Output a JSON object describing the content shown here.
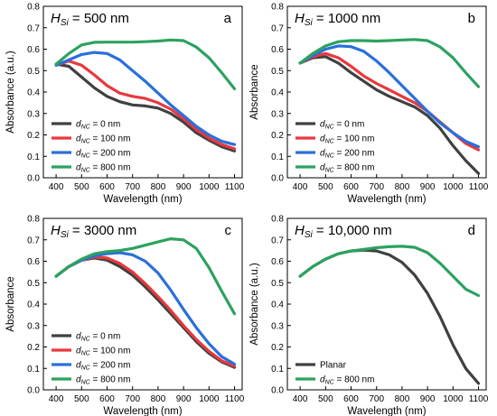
{
  "chart_data": [
    {
      "type": "line",
      "panel_letter": "a",
      "title_var": "H",
      "title_sub": "Si",
      "title_value": " = 500 nm",
      "xlabel": "Wavelength (nm)",
      "ylabel": "Absorbance (a.u.)",
      "xlim": [
        350,
        1130
      ],
      "ylim": [
        0,
        0.8
      ],
      "xticks": [
        400,
        500,
        600,
        700,
        800,
        900,
        1000,
        1100
      ],
      "yticks": [
        0,
        0.1,
        0.2,
        0.3,
        0.4,
        0.5,
        0.6,
        0.7,
        0.8
      ],
      "grid": false,
      "legend_position": "bottom-left",
      "series": [
        {
          "legend_var": "d",
          "legend_sub": "NC",
          "legend_value": " = 0 nm",
          "color": "#404040",
          "x": [
            400,
            450,
            500,
            550,
            600,
            650,
            700,
            750,
            800,
            850,
            900,
            950,
            1000,
            1050,
            1100
          ],
          "y": [
            0.53,
            0.52,
            0.47,
            0.42,
            0.38,
            0.355,
            0.34,
            0.335,
            0.325,
            0.3,
            0.26,
            0.21,
            0.175,
            0.145,
            0.125
          ]
        },
        {
          "legend_var": "d",
          "legend_sub": "NC",
          "legend_value": " = 100 nm",
          "color": "#e8383d",
          "x": [
            400,
            450,
            500,
            550,
            600,
            650,
            700,
            750,
            800,
            850,
            900,
            950,
            1000,
            1050,
            1100
          ],
          "y": [
            0.525,
            0.545,
            0.525,
            0.48,
            0.43,
            0.395,
            0.38,
            0.37,
            0.35,
            0.32,
            0.275,
            0.225,
            0.185,
            0.155,
            0.135
          ]
        },
        {
          "legend_var": "d",
          "legend_sub": "NC",
          "legend_value": " = 200 nm",
          "color": "#2a6fdb",
          "x": [
            400,
            450,
            500,
            550,
            600,
            650,
            700,
            750,
            800,
            850,
            900,
            950,
            1000,
            1050,
            1100
          ],
          "y": [
            0.525,
            0.55,
            0.575,
            0.585,
            0.58,
            0.55,
            0.5,
            0.45,
            0.395,
            0.34,
            0.29,
            0.24,
            0.2,
            0.17,
            0.155
          ]
        },
        {
          "legend_var": "d",
          "legend_sub": "NC",
          "legend_value": " = 800 nm",
          "color": "#2ca25f",
          "x": [
            400,
            450,
            500,
            550,
            600,
            650,
            700,
            750,
            800,
            850,
            900,
            950,
            1000,
            1050,
            1100
          ],
          "y": [
            0.53,
            0.58,
            0.62,
            0.632,
            0.633,
            0.633,
            0.633,
            0.635,
            0.638,
            0.643,
            0.64,
            0.61,
            0.56,
            0.49,
            0.415
          ]
        }
      ]
    },
    {
      "type": "line",
      "panel_letter": "b",
      "title_var": "H",
      "title_sub": "Si",
      "title_value": " = 1000 nm",
      "xlabel": "Wavelength (nm)",
      "ylabel": "Absorbance",
      "xlim": [
        350,
        1130
      ],
      "ylim": [
        0,
        0.8
      ],
      "xticks": [
        400,
        500,
        600,
        700,
        800,
        900,
        1000,
        1100
      ],
      "yticks": [
        0,
        0.1,
        0.2,
        0.3,
        0.4,
        0.5,
        0.6,
        0.7,
        0.8
      ],
      "grid": false,
      "legend_position": "bottom-left",
      "series": [
        {
          "legend_var": "d",
          "legend_sub": "NC",
          "legend_value": " = 0 nm",
          "color": "#404040",
          "x": [
            400,
            450,
            500,
            550,
            600,
            650,
            700,
            750,
            800,
            850,
            900,
            950,
            1000,
            1050,
            1100
          ],
          "y": [
            0.535,
            0.56,
            0.565,
            0.535,
            0.49,
            0.45,
            0.41,
            0.38,
            0.355,
            0.33,
            0.29,
            0.23,
            0.15,
            0.08,
            0.02
          ]
        },
        {
          "legend_var": "d",
          "legend_sub": "NC",
          "legend_value": " = 100 nm",
          "color": "#e8383d",
          "x": [
            400,
            450,
            500,
            550,
            600,
            650,
            700,
            750,
            800,
            850,
            900,
            950,
            1000,
            1050,
            1100
          ],
          "y": [
            0.535,
            0.565,
            0.58,
            0.56,
            0.52,
            0.475,
            0.44,
            0.41,
            0.38,
            0.35,
            0.31,
            0.26,
            0.21,
            0.16,
            0.13
          ]
        },
        {
          "legend_var": "d",
          "legend_sub": "NC",
          "legend_value": " = 200 nm",
          "color": "#2a6fdb",
          "x": [
            400,
            450,
            500,
            550,
            600,
            650,
            700,
            750,
            800,
            850,
            900,
            950,
            1000,
            1050,
            1100
          ],
          "y": [
            0.535,
            0.57,
            0.6,
            0.615,
            0.612,
            0.59,
            0.545,
            0.49,
            0.43,
            0.37,
            0.31,
            0.255,
            0.21,
            0.17,
            0.145
          ]
        },
        {
          "legend_var": "d",
          "legend_sub": "NC",
          "legend_value": " = 800 nm",
          "color": "#2ca25f",
          "x": [
            400,
            450,
            500,
            550,
            600,
            650,
            700,
            750,
            800,
            850,
            900,
            950,
            1000,
            1050,
            1100
          ],
          "y": [
            0.535,
            0.58,
            0.615,
            0.635,
            0.64,
            0.64,
            0.638,
            0.64,
            0.643,
            0.645,
            0.64,
            0.61,
            0.56,
            0.49,
            0.425
          ]
        }
      ]
    },
    {
      "type": "line",
      "panel_letter": "c",
      "title_var": "H",
      "title_sub": "Si",
      "title_value": " = 3000 nm",
      "xlabel": "Wavelength (nm)",
      "ylabel": "Absorbance",
      "xlim": [
        350,
        1130
      ],
      "ylim": [
        0,
        0.8
      ],
      "xticks": [
        400,
        500,
        600,
        700,
        800,
        900,
        1000,
        1100
      ],
      "yticks": [
        0,
        0.1,
        0.2,
        0.3,
        0.4,
        0.5,
        0.6,
        0.7,
        0.8
      ],
      "grid": false,
      "legend_position": "bottom-left",
      "series": [
        {
          "legend_var": "d",
          "legend_sub": "NC",
          "legend_value": " = 0 nm",
          "color": "#404040",
          "x": [
            400,
            450,
            500,
            550,
            600,
            650,
            700,
            750,
            800,
            850,
            900,
            950,
            1000,
            1050,
            1100
          ],
          "y": [
            0.53,
            0.575,
            0.605,
            0.615,
            0.605,
            0.575,
            0.535,
            0.48,
            0.42,
            0.355,
            0.29,
            0.225,
            0.17,
            0.13,
            0.105
          ]
        },
        {
          "legend_var": "d",
          "legend_sub": "NC",
          "legend_value": " = 100 nm",
          "color": "#e8383d",
          "x": [
            400,
            450,
            500,
            550,
            600,
            650,
            700,
            750,
            800,
            850,
            900,
            950,
            1000,
            1050,
            1100
          ],
          "y": [
            0.53,
            0.575,
            0.605,
            0.62,
            0.615,
            0.59,
            0.55,
            0.495,
            0.435,
            0.37,
            0.3,
            0.235,
            0.18,
            0.135,
            0.11
          ]
        },
        {
          "legend_var": "d",
          "legend_sub": "NC",
          "legend_value": " = 200 nm",
          "color": "#2a6fdb",
          "x": [
            400,
            450,
            500,
            550,
            600,
            650,
            700,
            750,
            800,
            850,
            900,
            950,
            1000,
            1050,
            1100
          ],
          "y": [
            0.53,
            0.575,
            0.605,
            0.625,
            0.635,
            0.64,
            0.63,
            0.6,
            0.545,
            0.465,
            0.375,
            0.29,
            0.215,
            0.155,
            0.12
          ]
        },
        {
          "legend_var": "d",
          "legend_sub": "NC",
          "legend_value": " = 800 nm",
          "color": "#2ca25f",
          "x": [
            400,
            450,
            500,
            550,
            600,
            650,
            700,
            750,
            800,
            850,
            900,
            950,
            1000,
            1050,
            1100
          ],
          "y": [
            0.53,
            0.575,
            0.61,
            0.635,
            0.645,
            0.65,
            0.66,
            0.675,
            0.69,
            0.705,
            0.7,
            0.66,
            0.57,
            0.46,
            0.355
          ]
        }
      ]
    },
    {
      "type": "line",
      "panel_letter": "d",
      "title_var": "H",
      "title_sub": "Si",
      "title_value": " = 10,000 nm",
      "xlabel": "Wavelength (nm)",
      "ylabel": "Absorbance (a.u.)",
      "xlim": [
        350,
        1130
      ],
      "ylim": [
        0,
        0.8
      ],
      "xticks": [
        400,
        500,
        600,
        700,
        800,
        900,
        1000,
        1100
      ],
      "yticks": [
        0,
        0.1,
        0.2,
        0.3,
        0.4,
        0.5,
        0.6,
        0.7,
        0.8
      ],
      "grid": false,
      "legend_position": "bottom-left",
      "series": [
        {
          "legend_text": "Planar",
          "color": "#404040",
          "x": [
            400,
            450,
            500,
            550,
            600,
            650,
            700,
            750,
            800,
            850,
            900,
            950,
            1000,
            1050,
            1100
          ],
          "y": [
            0.53,
            0.575,
            0.61,
            0.635,
            0.648,
            0.652,
            0.648,
            0.63,
            0.595,
            0.535,
            0.45,
            0.34,
            0.21,
            0.1,
            0.03
          ]
        },
        {
          "legend_var": "d",
          "legend_sub": "NC",
          "legend_value": " = 800 nm",
          "color": "#2ca25f",
          "x": [
            400,
            450,
            500,
            550,
            600,
            650,
            700,
            750,
            800,
            850,
            900,
            950,
            1000,
            1050,
            1100
          ],
          "y": [
            0.53,
            0.575,
            0.61,
            0.635,
            0.648,
            0.655,
            0.663,
            0.668,
            0.67,
            0.665,
            0.64,
            0.59,
            0.53,
            0.47,
            0.44
          ]
        }
      ]
    }
  ]
}
